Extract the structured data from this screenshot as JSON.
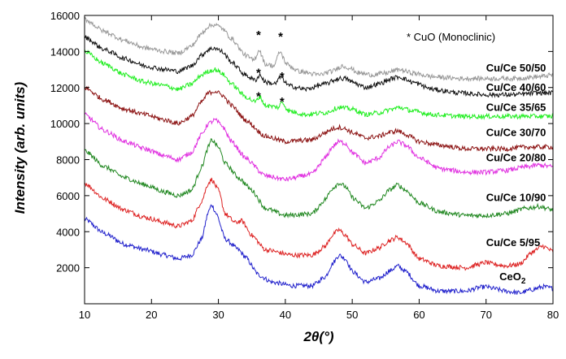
{
  "chart_data": {
    "type": "line",
    "xlabel": "2θ(°)",
    "ylabel": "Intensity (arb. units)",
    "xlim": [
      10,
      80
    ],
    "ylim": [
      0,
      16000
    ],
    "x_ticks": [
      10,
      20,
      30,
      40,
      50,
      60,
      70,
      80
    ],
    "y_ticks": [
      2000,
      4000,
      6000,
      8000,
      10000,
      12000,
      14000,
      16000
    ],
    "grid": false,
    "annotation": "* CuO (Monoclinic)",
    "cuo_markers": [
      {
        "text": "*",
        "x": 36.0,
        "y": 14700
      },
      {
        "text": "*",
        "x": 39.3,
        "y": 14600
      },
      {
        "text": "*",
        "x": 36.0,
        "y": 12600
      },
      {
        "text": "*",
        "x": 39.5,
        "y": 12400
      },
      {
        "text": "*",
        "x": 36.0,
        "y": 11300
      },
      {
        "text": "*",
        "x": 39.5,
        "y": 11000
      }
    ],
    "series": [
      {
        "name": "CeO2",
        "color": "#2222cc",
        "label_x": 72,
        "label_y": 1300,
        "points": [
          [
            10,
            4700
          ],
          [
            13,
            3900
          ],
          [
            16,
            3300
          ],
          [
            19,
            3000
          ],
          [
            22,
            2700
          ],
          [
            24,
            2500
          ],
          [
            26,
            2700
          ],
          [
            27.5,
            3600
          ],
          [
            28.5,
            5100
          ],
          [
            29,
            5500
          ],
          [
            29.7,
            5000
          ],
          [
            31,
            3600
          ],
          [
            33,
            3000
          ],
          [
            34,
            2600
          ],
          [
            36,
            1600
          ],
          [
            38,
            1200
          ],
          [
            41,
            1000
          ],
          [
            44,
            1000
          ],
          [
            46,
            1500
          ],
          [
            47,
            2200
          ],
          [
            48,
            2700
          ],
          [
            49,
            2500
          ],
          [
            50,
            1800
          ],
          [
            52,
            1200
          ],
          [
            54,
            1400
          ],
          [
            55.5,
            1800
          ],
          [
            56.8,
            2100
          ],
          [
            58,
            1800
          ],
          [
            60,
            1000
          ],
          [
            63,
            700
          ],
          [
            67,
            700
          ],
          [
            69,
            900
          ],
          [
            70,
            950
          ],
          [
            71,
            850
          ],
          [
            73,
            700
          ],
          [
            75,
            600
          ],
          [
            77,
            800
          ],
          [
            78.5,
            950
          ],
          [
            80,
            850
          ]
        ]
      },
      {
        "name": "Cu/Ce 5/95",
        "color": "#dd2222",
        "label_x": 70,
        "label_y": 3200,
        "points": [
          [
            10,
            6700
          ],
          [
            13,
            5800
          ],
          [
            16,
            5200
          ],
          [
            19,
            4800
          ],
          [
            22,
            4500
          ],
          [
            24,
            4300
          ],
          [
            26,
            4600
          ],
          [
            27.5,
            5700
          ],
          [
            28.5,
            6700
          ],
          [
            29,
            6900
          ],
          [
            30,
            6300
          ],
          [
            31,
            5000
          ],
          [
            32.5,
            4500
          ],
          [
            33.5,
            4600
          ],
          [
            35,
            3800
          ],
          [
            37,
            3000
          ],
          [
            41,
            2700
          ],
          [
            44,
            2700
          ],
          [
            46,
            3200
          ],
          [
            47,
            3800
          ],
          [
            48,
            4100
          ],
          [
            49,
            3800
          ],
          [
            50,
            3300
          ],
          [
            52,
            2800
          ],
          [
            54,
            3100
          ],
          [
            55.5,
            3500
          ],
          [
            56.8,
            3700
          ],
          [
            58,
            3400
          ],
          [
            60,
            2500
          ],
          [
            63,
            2100
          ],
          [
            67,
            2000
          ],
          [
            69,
            2200
          ],
          [
            70,
            2300
          ],
          [
            71,
            2200
          ],
          [
            73,
            2100
          ],
          [
            75,
            2200
          ],
          [
            77,
            2900
          ],
          [
            78.5,
            3200
          ],
          [
            80,
            2900
          ]
        ]
      },
      {
        "name": "Cu/Ce 10/90",
        "color": "#228822",
        "label_x": 70,
        "label_y": 5700,
        "points": [
          [
            10,
            8500
          ],
          [
            13,
            7600
          ],
          [
            16,
            7000
          ],
          [
            19,
            6600
          ],
          [
            22,
            6200
          ],
          [
            24,
            6000
          ],
          [
            26,
            6300
          ],
          [
            27.5,
            7600
          ],
          [
            28.5,
            8700
          ],
          [
            29,
            9100
          ],
          [
            30,
            8700
          ],
          [
            31,
            7800
          ],
          [
            33,
            7000
          ],
          [
            35,
            6300
          ],
          [
            37,
            5300
          ],
          [
            40,
            4900
          ],
          [
            44,
            5000
          ],
          [
            46,
            5800
          ],
          [
            47,
            6400
          ],
          [
            48,
            6700
          ],
          [
            49,
            6500
          ],
          [
            50,
            5900
          ],
          [
            52,
            5300
          ],
          [
            54,
            5700
          ],
          [
            55.5,
            6300
          ],
          [
            56.8,
            6600
          ],
          [
            58,
            6300
          ],
          [
            60,
            5600
          ],
          [
            63,
            5100
          ],
          [
            67,
            4900
          ],
          [
            70,
            4900
          ],
          [
            73,
            5000
          ],
          [
            76,
            5300
          ],
          [
            78,
            5400
          ],
          [
            80,
            5200
          ]
        ]
      },
      {
        "name": "Cu/Ce 20/80",
        "color": "#e030e0",
        "label_x": 70,
        "label_y": 7900,
        "points": [
          [
            10,
            10500
          ],
          [
            13,
            9600
          ],
          [
            16,
            9000
          ],
          [
            19,
            8600
          ],
          [
            22,
            8200
          ],
          [
            24,
            8000
          ],
          [
            26,
            8400
          ],
          [
            27.5,
            9400
          ],
          [
            28.5,
            10000
          ],
          [
            29.5,
            10200
          ],
          [
            30.5,
            9900
          ],
          [
            32,
            9000
          ],
          [
            34,
            8100
          ],
          [
            37,
            7100
          ],
          [
            40,
            6900
          ],
          [
            44,
            7200
          ],
          [
            46,
            8100
          ],
          [
            47,
            8700
          ],
          [
            48,
            9000
          ],
          [
            49,
            8900
          ],
          [
            50,
            8400
          ],
          [
            52,
            7800
          ],
          [
            54,
            8100
          ],
          [
            55.5,
            8700
          ],
          [
            56.8,
            9000
          ],
          [
            58,
            8800
          ],
          [
            60,
            8100
          ],
          [
            63,
            7500
          ],
          [
            67,
            7300
          ],
          [
            70,
            7300
          ],
          [
            73,
            7400
          ],
          [
            76,
            7600
          ],
          [
            78,
            7700
          ],
          [
            80,
            7600
          ]
        ]
      },
      {
        "name": "Cu/Ce 30/70",
        "color": "#8b1111",
        "label_x": 70,
        "label_y": 9300,
        "points": [
          [
            10,
            12000
          ],
          [
            13,
            11300
          ],
          [
            16,
            10800
          ],
          [
            19,
            10500
          ],
          [
            22,
            10200
          ],
          [
            24,
            10000
          ],
          [
            26,
            10400
          ],
          [
            27.5,
            11200
          ],
          [
            28.5,
            11700
          ],
          [
            29.5,
            11800
          ],
          [
            30.5,
            11600
          ],
          [
            32,
            11000
          ],
          [
            34,
            10200
          ],
          [
            37,
            9300
          ],
          [
            40,
            9000
          ],
          [
            44,
            9100
          ],
          [
            46,
            9500
          ],
          [
            47,
            9700
          ],
          [
            48,
            9800
          ],
          [
            49,
            9700
          ],
          [
            50,
            9500
          ],
          [
            52,
            9200
          ],
          [
            54,
            9300
          ],
          [
            55.5,
            9500
          ],
          [
            56.8,
            9600
          ],
          [
            58,
            9400
          ],
          [
            60,
            9000
          ],
          [
            63,
            8800
          ],
          [
            67,
            8600
          ],
          [
            70,
            8600
          ],
          [
            73,
            8600
          ],
          [
            76,
            8700
          ],
          [
            78,
            8700
          ],
          [
            80,
            8700
          ]
        ]
      },
      {
        "name": "Cu/Ce 35/65",
        "color": "#22ee22",
        "label_x": 70,
        "label_y": 10700,
        "points": [
          [
            10,
            14000
          ],
          [
            13,
            13300
          ],
          [
            16,
            12700
          ],
          [
            19,
            12300
          ],
          [
            22,
            12100
          ],
          [
            24,
            11900
          ],
          [
            26,
            12200
          ],
          [
            27.5,
            12700
          ],
          [
            28.5,
            12900
          ],
          [
            29.5,
            13000
          ],
          [
            30.5,
            12800
          ],
          [
            32,
            12200
          ],
          [
            34,
            11500
          ],
          [
            35.5,
            11200
          ],
          [
            36.2,
            11500
          ],
          [
            37,
            11000
          ],
          [
            39,
            10900
          ],
          [
            39.5,
            11200
          ],
          [
            40.5,
            10700
          ],
          [
            43,
            10500
          ],
          [
            46,
            10600
          ],
          [
            48,
            10900
          ],
          [
            50,
            10800
          ],
          [
            52,
            10500
          ],
          [
            54,
            10600
          ],
          [
            56,
            10800
          ],
          [
            57,
            10900
          ],
          [
            59,
            10700
          ],
          [
            62,
            10500
          ],
          [
            66,
            10400
          ],
          [
            70,
            10400
          ],
          [
            74,
            10400
          ],
          [
            78,
            10400
          ],
          [
            80,
            10400
          ]
        ]
      },
      {
        "name": "Cu/Ce 40/60",
        "color": "#111111",
        "label_x": 70,
        "label_y": 11800,
        "points": [
          [
            10,
            14800
          ],
          [
            13,
            14100
          ],
          [
            16,
            13600
          ],
          [
            19,
            13200
          ],
          [
            22,
            13000
          ],
          [
            24,
            12900
          ],
          [
            26,
            13200
          ],
          [
            27.5,
            13800
          ],
          [
            28.5,
            14100
          ],
          [
            29.5,
            14200
          ],
          [
            30.5,
            14000
          ],
          [
            32,
            13400
          ],
          [
            34,
            12700
          ],
          [
            35.5,
            12400
          ],
          [
            36.2,
            12700
          ],
          [
            37,
            12300
          ],
          [
            38.5,
            12200
          ],
          [
            39.3,
            12600
          ],
          [
            40.5,
            12100
          ],
          [
            43,
            11900
          ],
          [
            46,
            12200
          ],
          [
            48,
            12500
          ],
          [
            49,
            12500
          ],
          [
            50,
            12300
          ],
          [
            52,
            12000
          ],
          [
            54,
            12200
          ],
          [
            56,
            12500
          ],
          [
            57,
            12600
          ],
          [
            59,
            12300
          ],
          [
            62,
            11900
          ],
          [
            66,
            11700
          ],
          [
            70,
            11600
          ],
          [
            74,
            11600
          ],
          [
            78,
            11700
          ],
          [
            80,
            11700
          ]
        ]
      },
      {
        "name": "Cu/Ce 50/50",
        "color": "#999999",
        "label_x": 70,
        "label_y": 12900,
        "points": [
          [
            10,
            15800
          ],
          [
            13,
            15100
          ],
          [
            16,
            14600
          ],
          [
            19,
            14200
          ],
          [
            22,
            14000
          ],
          [
            24,
            13900
          ],
          [
            26,
            14300
          ],
          [
            27.5,
            15000
          ],
          [
            28.5,
            15400
          ],
          [
            29.5,
            15500
          ],
          [
            30.5,
            15300
          ],
          [
            32,
            14700
          ],
          [
            34,
            13800
          ],
          [
            35.3,
            13500
          ],
          [
            36.1,
            14100
          ],
          [
            37,
            13300
          ],
          [
            38.3,
            13200
          ],
          [
            39.2,
            14000
          ],
          [
            40.2,
            13300
          ],
          [
            42,
            12900
          ],
          [
            45,
            12700
          ],
          [
            47,
            12900
          ],
          [
            48.5,
            13200
          ],
          [
            49.5,
            13100
          ],
          [
            51,
            12800
          ],
          [
            53,
            12700
          ],
          [
            55,
            12800
          ],
          [
            57,
            13000
          ],
          [
            59,
            12800
          ],
          [
            62,
            12600
          ],
          [
            66,
            12500
          ],
          [
            70,
            12500
          ],
          [
            74,
            12500
          ],
          [
            78,
            12600
          ],
          [
            80,
            12700
          ]
        ]
      }
    ]
  }
}
